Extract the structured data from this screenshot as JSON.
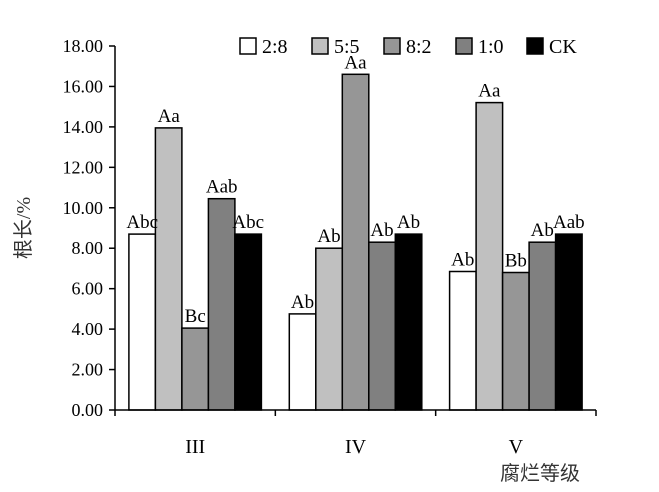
{
  "chart_data": {
    "type": "bar",
    "categories": [
      "III",
      "IV",
      "V"
    ],
    "series": [
      {
        "name": "2:8",
        "color": "#ffffff",
        "values": [
          8.7,
          4.75,
          6.85
        ],
        "labels": [
          "Abc",
          "Ab",
          "Ab"
        ]
      },
      {
        "name": "5:5",
        "color": "#c0c0c0",
        "values": [
          13.95,
          8.0,
          15.2
        ],
        "labels": [
          "Aa",
          "Ab",
          "Aa"
        ]
      },
      {
        "name": "8:2",
        "color": "#969696",
        "values": [
          4.05,
          16.6,
          6.8
        ],
        "labels": [
          "Bc",
          "Aa",
          "Bb"
        ]
      },
      {
        "name": "1:0",
        "color": "#808080",
        "values": [
          10.45,
          8.3,
          8.3
        ],
        "labels": [
          "Aab",
          "Ab",
          "Ab"
        ]
      },
      {
        "name": "CK",
        "color": "#000000",
        "values": [
          8.7,
          8.7,
          8.7
        ],
        "labels": [
          "Abc",
          "Ab",
          "Aab"
        ]
      }
    ],
    "ylabel": "根长/%",
    "xlabel": "腐烂等级",
    "ylim": [
      0,
      18
    ],
    "yticks": [
      "0.00",
      "2.00",
      "4.00",
      "6.00",
      "8.00",
      "10.00",
      "12.00",
      "14.00",
      "16.00",
      "18.00"
    ],
    "grid": false,
    "legend_position": "top-right"
  }
}
